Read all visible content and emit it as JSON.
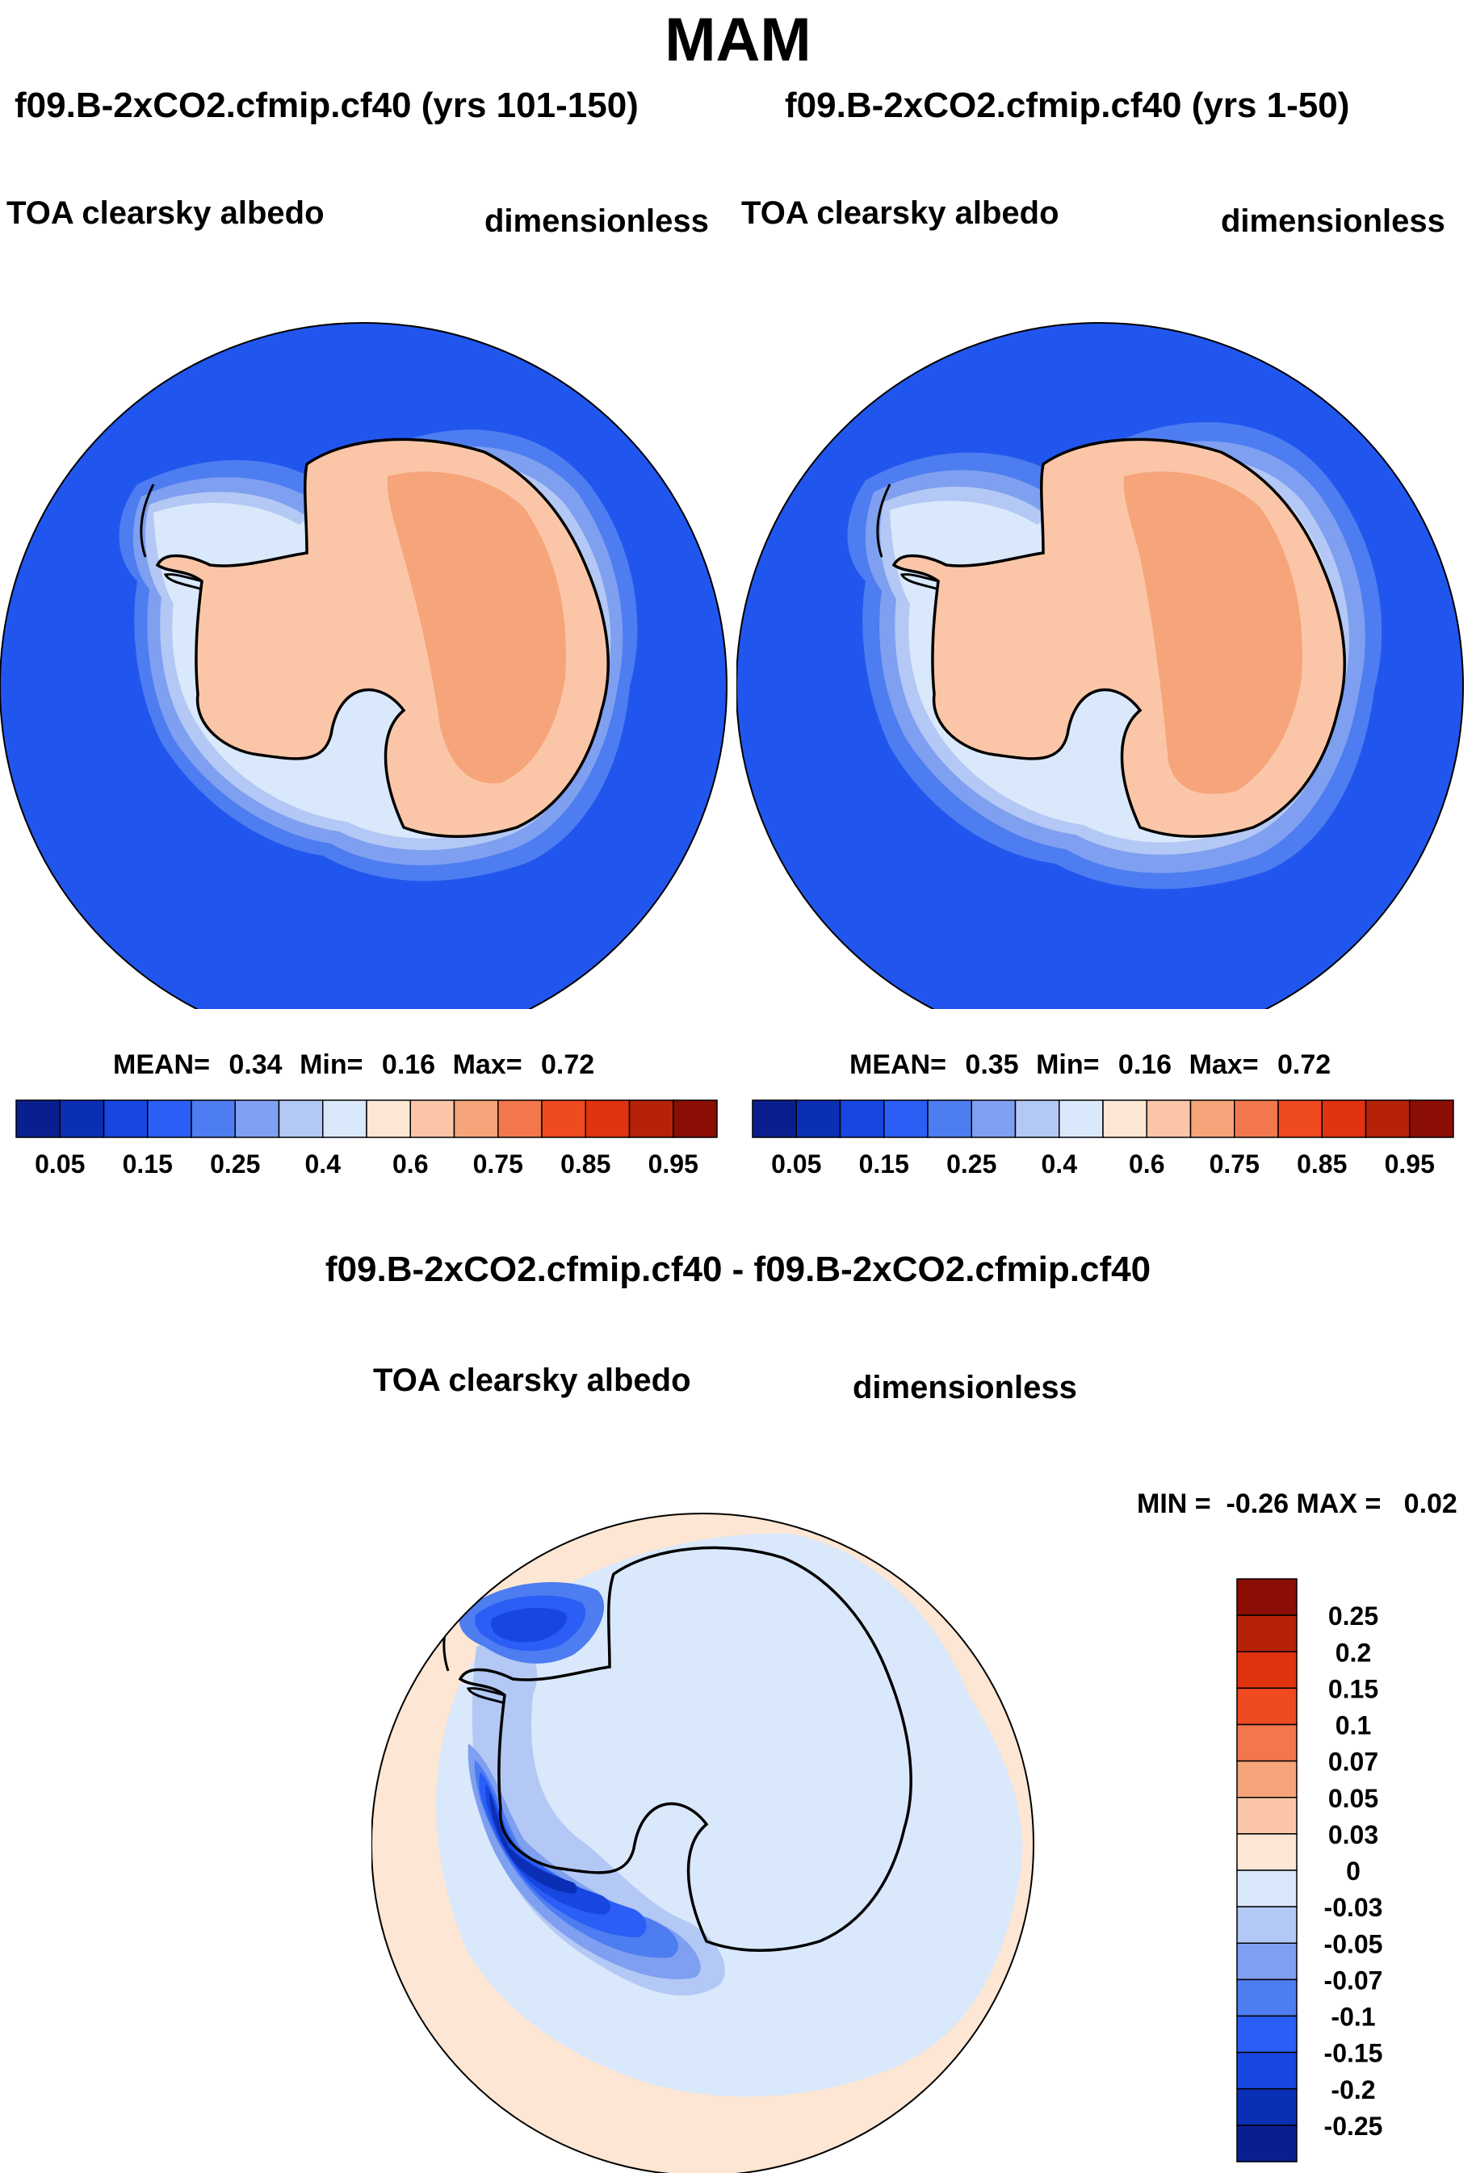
{
  "figure": {
    "season": "MAM",
    "diff_title": "f09.B-2xCO2.cfmip.cf40 - f09.B-2xCO2.cfmip.cf40"
  },
  "panels": [
    {
      "title": "f09.B-2xCO2.cfmip.cf40 (yrs 101-150)",
      "variable": "TOA clearsky albedo",
      "units": "dimensionless",
      "stats": {
        "mean_label": "MEAN=",
        "mean": "0.34",
        "min_label": "Min=",
        "min": "0.16",
        "max_label": "Max=",
        "max": "0.72"
      }
    },
    {
      "title": "f09.B-2xCO2.cfmip.cf40 (yrs 1-50)",
      "variable": "TOA clearsky albedo",
      "units": "dimensionless",
      "stats": {
        "mean_label": "MEAN=",
        "mean": "0.35",
        "min_label": "Min=",
        "min": "0.16",
        "max_label": "Max=",
        "max": "0.72"
      }
    }
  ],
  "abs_colorbar": {
    "tick_labels": [
      "0.05",
      "0.15",
      "0.25",
      "0.4",
      "0.6",
      "0.75",
      "0.85",
      "0.95"
    ],
    "colors": [
      "#0a1f8f",
      "#0b2fb4",
      "#1746e0",
      "#2a5ef5",
      "#4d7df0",
      "#7f9ff0",
      "#b3c8f5",
      "#dae8fb",
      "#fde6d3",
      "#fbc6a8",
      "#f6a47a",
      "#f2774c",
      "#ef4a20",
      "#e03310",
      "#b52208",
      "#8a0e04"
    ]
  },
  "diff_panel": {
    "variable": "TOA clearsky albedo",
    "units": "dimensionless",
    "minmax": "MIN =  -0.26 MAX =   0.02",
    "colorbar_labels": [
      "0.25",
      "0.2",
      "0.15",
      "0.1",
      "0.07",
      "0.05",
      "0.03",
      "0",
      "-0.03",
      "-0.05",
      "-0.07",
      "-0.1",
      "-0.15",
      "-0.2",
      "-0.25"
    ],
    "colorbar_colors": [
      "#8a0e04",
      "#b52208",
      "#e03310",
      "#ef4a20",
      "#f2774c",
      "#f6a47a",
      "#fbc6a8",
      "#fde6d3",
      "#dae8fb",
      "#b3c8f5",
      "#7f9ff0",
      "#4d7df0",
      "#2a5ef5",
      "#1746e0",
      "#0b2fb4",
      "#0a1f8f"
    ]
  },
  "map_colors": {
    "ocean_abs": "#2156ee",
    "ice_ring1": "#4d7df0",
    "ice_ring2": "#7f9ff0",
    "ice_ring3": "#b3c8f5",
    "ice_edge": "#dae8fb",
    "land": "#fbc6a8",
    "plateau": "#f6a47a",
    "diff_background": "#fde6d3",
    "diff_light": "#dae8fb",
    "diff_blue1": "#b3c8f5",
    "diff_blue2": "#7f9ff0",
    "diff_blue3": "#4d7df0",
    "diff_blue4": "#2a5ef5",
    "diff_blue5": "#1746e0",
    "diff_blue6": "#0b2fb4"
  }
}
